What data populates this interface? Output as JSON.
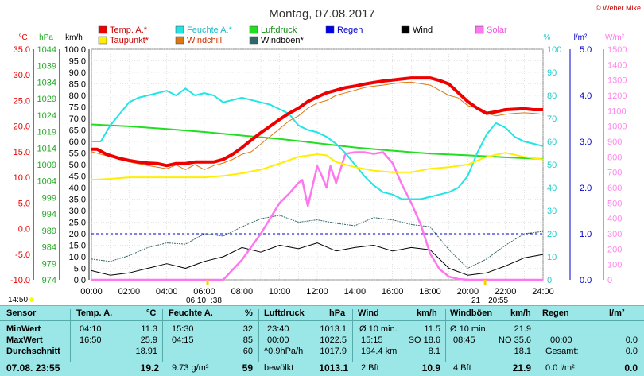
{
  "copyright": "© Weber Mike",
  "chart_data": {
    "type": "line",
    "title": "Montag, 07.08.2017",
    "legend": [
      {
        "label": "Temp. A.*",
        "color": "#ee0000"
      },
      {
        "label": "Feuchte A.*",
        "color": "#22e5e5"
      },
      {
        "label": "Luftdruck",
        "color": "#22dd22"
      },
      {
        "label": "Regen",
        "color": "#0000ee"
      },
      {
        "label": "Wind",
        "color": "#000000"
      },
      {
        "label": "Solar",
        "color": "#ff77ee"
      },
      {
        "label": "Taupunkt*",
        "color": "#ffee00"
      },
      {
        "label": "Windchill",
        "color": "#dd7711"
      },
      {
        "label": "Windböen*",
        "color": "#336666"
      }
    ],
    "axes": {
      "temp": {
        "unit": "°C",
        "ticks": [
          "35.0",
          "30.0",
          "25.0",
          "20.0",
          "15.0",
          "10.0",
          "5.0",
          "0.0",
          "-5.0",
          "-10.0"
        ],
        "color": "#ee0000"
      },
      "pressure": {
        "unit": "hPa",
        "ticks": [
          "1044",
          "1039",
          "1034",
          "1029",
          "1024",
          "1019",
          "1014",
          "1009",
          "1004",
          "999",
          "994",
          "989",
          "984",
          "979",
          "974"
        ],
        "color": "#22aa22"
      },
      "wind": {
        "unit": "km/h",
        "ticks": [
          "100.0",
          "95.0",
          "90.0",
          "85.0",
          "80.0",
          "75.0",
          "70.0",
          "65.0",
          "60.0",
          "55.0",
          "50.0",
          "45.0",
          "40.0",
          "35.0",
          "30.0",
          "25.0",
          "20.0",
          "15.0",
          "10.0",
          "5.0",
          "0.0"
        ],
        "color": "#000000"
      },
      "humidity": {
        "unit": "%",
        "ticks": [
          "100",
          "90",
          "80",
          "70",
          "60",
          "50",
          "40",
          "30",
          "20",
          "10",
          "0"
        ],
        "color": "#22cccc"
      },
      "rain": {
        "unit": "l/m²",
        "ticks": [
          "5.0",
          "4.0",
          "3.0",
          "2.0",
          "1.0",
          "0.0"
        ],
        "color": "#0000cc"
      },
      "solar": {
        "unit": "W/m²",
        "ticks": [
          "1500",
          "1400",
          "1300",
          "1200",
          "1100",
          "1000",
          "900",
          "800",
          "700",
          "600",
          "500",
          "400",
          "300",
          "200",
          "100",
          "0"
        ],
        "color": "#ff77ee"
      },
      "x": [
        "00:00",
        "02:00",
        "04:00",
        "06:00",
        "08:00",
        "10:00",
        "12:00",
        "14:00",
        "16:00",
        "18:00",
        "20:00",
        "22:00",
        "24:00"
      ]
    },
    "sun_events": {
      "sunrise": "06:10",
      "sunrise_suffix": ":38",
      "sunset_prefix": "21",
      "sunset": "20:55"
    },
    "series": {
      "temp_x": [
        0,
        0.3,
        0.8,
        1.5,
        2,
        2.5,
        3,
        3.5,
        4,
        4.5,
        5,
        5.5,
        6,
        6.5,
        7,
        7.5,
        8,
        8.5,
        9,
        9.5,
        10,
        10.5,
        11,
        11.5,
        12,
        12.5,
        13,
        13.5,
        14,
        14.5,
        15,
        15.5,
        16,
        16.5,
        17,
        17.5,
        18,
        18.5,
        19,
        19.5,
        20,
        20.5,
        21,
        21.5,
        22,
        22.5,
        23,
        23.5,
        24
      ],
      "temp_y": [
        15.5,
        15.5,
        14.5,
        13.7,
        13.3,
        13.0,
        12.8,
        12.7,
        12.3,
        12.7,
        12.7,
        13.0,
        13.0,
        13.0,
        13.5,
        14.5,
        15.8,
        17.3,
        18.7,
        20.0,
        21.3,
        22.5,
        23.5,
        24.8,
        25.7,
        26.5,
        27.0,
        27.5,
        27.8,
        28.2,
        28.5,
        28.8,
        29.0,
        29.2,
        29.4,
        29.4,
        29.4,
        28.9,
        28.2,
        26.5,
        24.8,
        23.5,
        22.5,
        22.8,
        23.2,
        23.3,
        23.4,
        23.2,
        23.2
      ],
      "dew_x": [
        0,
        1,
        2,
        3,
        4,
        5,
        6,
        7,
        8,
        9,
        10,
        11,
        12,
        12.5,
        13,
        14,
        15,
        16,
        17,
        18,
        19,
        20,
        21,
        22,
        23,
        24
      ],
      "dew_y": [
        9.5,
        9.7,
        10.0,
        10.0,
        10.0,
        10.0,
        10.0,
        10.3,
        10.8,
        11.5,
        12.7,
        14.0,
        14.5,
        14.3,
        13.0,
        12.0,
        11.3,
        11.0,
        11.0,
        11.7,
        12.0,
        12.5,
        14.0,
        14.8,
        14.0,
        13.5
      ],
      "chill_x": [
        0,
        1,
        2,
        3,
        4,
        4.5,
        5,
        5.5,
        6,
        6.5,
        7,
        7.5,
        8,
        8.5,
        9,
        9.5,
        10,
        10.5,
        11,
        11.5,
        12,
        12.5,
        13,
        13.5,
        14,
        14.5,
        15,
        15.5,
        16,
        16.5,
        17,
        17.5,
        18,
        18.5,
        19,
        19.5,
        20,
        20.5,
        21,
        21.5,
        22,
        22.5,
        23,
        23.5,
        24
      ],
      "chill_y": [
        15.0,
        14.0,
        13.0,
        12.3,
        11.7,
        12.4,
        11.5,
        12.5,
        11.5,
        12.3,
        12.8,
        13.5,
        14.5,
        15.0,
        16.5,
        18.0,
        19.5,
        21.0,
        22.0,
        23.5,
        24.5,
        25.0,
        26.0,
        26.5,
        27.0,
        27.5,
        27.8,
        28.0,
        28.3,
        28.5,
        28.6,
        28.3,
        28.0,
        27.0,
        26.0,
        25.5,
        24.0,
        23.5,
        22.5,
        22.0,
        22.3,
        22.5,
        22.6,
        22.5,
        22.3
      ],
      "hum_x": [
        0,
        0.5,
        1,
        1.5,
        2,
        2.5,
        3,
        3.5,
        4,
        4.5,
        5,
        5.5,
        6,
        6.5,
        7,
        7.5,
        8,
        8.5,
        9,
        9.5,
        10,
        10.5,
        11,
        11.5,
        12,
        12.5,
        13,
        13.5,
        14,
        14.5,
        15,
        15.5,
        16,
        16.5,
        17,
        17.5,
        18,
        18.5,
        19,
        19.5,
        20,
        20.5,
        21,
        21.5,
        22,
        22.5,
        23,
        23.5,
        24
      ],
      "hum_y": [
        60,
        60,
        67,
        72,
        77,
        79,
        80,
        81,
        82,
        80,
        83,
        80,
        81,
        80,
        77,
        78,
        79,
        78,
        77,
        76,
        74,
        72,
        67,
        65,
        64,
        62,
        59,
        55,
        50,
        45,
        41,
        38,
        37,
        35,
        35,
        35,
        36,
        37,
        38,
        40,
        45,
        55,
        63,
        68,
        66,
        62,
        60,
        59,
        58
      ],
      "press_x": [
        0,
        2,
        4,
        6,
        8,
        10,
        12,
        14,
        16,
        18,
        20,
        22,
        24
      ],
      "press_y": [
        1021.2,
        1020.6,
        1019.8,
        1018.9,
        1017.8,
        1016.8,
        1015.5,
        1014.2,
        1013.2,
        1012.3,
        1011.8,
        1011.2,
        1010.7
      ],
      "solar_x": [
        0,
        6,
        7,
        8,
        9,
        10,
        10.5,
        11,
        11.2,
        11.5,
        12,
        12.2,
        12.5,
        12.7,
        13,
        13.5,
        14,
        14.5,
        15,
        15.5,
        16,
        16.5,
        17,
        17.5,
        18,
        18.5,
        19,
        19.5,
        20,
        24
      ],
      "solar_y": [
        0,
        0,
        0,
        130,
        300,
        500,
        560,
        630,
        650,
        480,
        740,
        690,
        600,
        740,
        630,
        820,
        830,
        830,
        820,
        830,
        760,
        620,
        500,
        360,
        170,
        70,
        20,
        5,
        0,
        0
      ],
      "wind_x": [
        0,
        1,
        2,
        3,
        4,
        5,
        6,
        7,
        8,
        9,
        10,
        11,
        12,
        13,
        14,
        15,
        16,
        17,
        18,
        19,
        20,
        21,
        22,
        23,
        24
      ],
      "wind_y": [
        4.0,
        2.0,
        3.0,
        5.0,
        7.0,
        5.0,
        8.0,
        10.0,
        14.0,
        12.0,
        15.0,
        13.5,
        16.0,
        12.5,
        14.0,
        15.0,
        12.5,
        14.0,
        13.0,
        5.0,
        2.0,
        3.0,
        6.0,
        9.5,
        11.0
      ],
      "gust_y": [
        9.0,
        8.0,
        10.5,
        14.0,
        16.0,
        15.5,
        20.0,
        19.0,
        23.0,
        26.5,
        28.0,
        25.0,
        26.0,
        24.5,
        23.5,
        27.0,
        26.0,
        24.0,
        23.0,
        13.0,
        5.0,
        9.0,
        15.0,
        20.0,
        21.0
      ],
      "rain_level": 1.0
    }
  },
  "table": {
    "headers": {
      "sensor": "Sensor",
      "temp": "Temp. A.",
      "temp_unit": "°C",
      "hum": "Feuchte A.",
      "hum_unit": "%",
      "press": "Luftdruck",
      "press_unit": "hPa",
      "wind": "Wind",
      "wind_unit": "km/h",
      "gust": "Windböen",
      "gust_unit": "km/h",
      "rain": "Regen",
      "rain_unit": "l/m²"
    },
    "rows": [
      {
        "label": "MinWert",
        "c1": "04:10",
        "c2": "11.3",
        "c3": "15:30",
        "c4": "32",
        "c5": "23:40",
        "c6": "1013.1",
        "c7": "Ø 10 min.",
        "c8": "11.5",
        "c9": "Ø 10 min.",
        "c10": "21.9",
        "c11": "",
        "c12": ""
      },
      {
        "label": "MaxWert",
        "c1": "16:50",
        "c2": "25.9",
        "c3": "04:15",
        "c4": "85",
        "c5": "00:00",
        "c6": "1022.5",
        "c7": "15:15",
        "c7b": "SO 18.6",
        "c8": "",
        "c9": "08:45",
        "c9b": "NO 35.6",
        "c10": "",
        "c11": "00:00",
        "c12": "0.0"
      },
      {
        "label": "Durchschnitt",
        "c1": "",
        "c2": "18.91",
        "c3": "",
        "c4": "60",
        "c5": "^0.9hPa/h",
        "c6": "1017.9",
        "c7": "194.4 km",
        "c8": "8.1",
        "c9": "",
        "c10": "18.1",
        "c11": "Gesamt:",
        "c12": "0.0"
      },
      {
        "label": "07.08. 23:55",
        "c1": "",
        "c2": "19.2",
        "c3": "9.73 g/m³",
        "c4": "59",
        "c5": "bewölkt",
        "c6": "1013.1",
        "c7": "2 Bft",
        "c8": "10.9",
        "c9": "4 Bft",
        "c10": "21.9",
        "c11": "0.0 l/m²",
        "c12": "0.0"
      }
    ]
  },
  "timestamp": "14:50"
}
